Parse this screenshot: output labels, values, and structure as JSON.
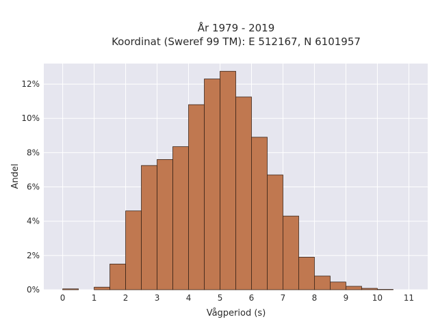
{
  "chart_data": {
    "type": "bar",
    "title_line1": "År 1979 - 2019",
    "title_line2": "Koordinat (Sweref 99 TM): E 512167, N 6101957",
    "xlabel": "Vågperiod (s)",
    "ylabel": "Andel",
    "bin_width": 0.5,
    "bins": [
      {
        "start": 0.0,
        "value": 0.05
      },
      {
        "start": 0.5,
        "value": 0.0
      },
      {
        "start": 1.0,
        "value": 0.15
      },
      {
        "start": 1.5,
        "value": 1.5
      },
      {
        "start": 2.0,
        "value": 4.6
      },
      {
        "start": 2.5,
        "value": 7.25
      },
      {
        "start": 3.0,
        "value": 7.6
      },
      {
        "start": 3.5,
        "value": 8.35
      },
      {
        "start": 4.0,
        "value": 10.8
      },
      {
        "start": 4.5,
        "value": 12.3
      },
      {
        "start": 5.0,
        "value": 12.75
      },
      {
        "start": 5.5,
        "value": 11.25
      },
      {
        "start": 6.0,
        "value": 8.9
      },
      {
        "start": 6.5,
        "value": 6.7
      },
      {
        "start": 7.0,
        "value": 4.3
      },
      {
        "start": 7.5,
        "value": 1.9
      },
      {
        "start": 8.0,
        "value": 0.8
      },
      {
        "start": 8.5,
        "value": 0.45
      },
      {
        "start": 9.0,
        "value": 0.2
      },
      {
        "start": 9.5,
        "value": 0.08
      },
      {
        "start": 10.0,
        "value": 0.02
      }
    ],
    "xticks": [
      "0",
      "1",
      "2",
      "3",
      "4",
      "5",
      "6",
      "7",
      "8",
      "9",
      "10",
      "11"
    ],
    "yticks": [
      "0%",
      "2%",
      "4%",
      "6%",
      "8%",
      "10%",
      "12%"
    ],
    "xlim": [
      -0.6,
      11.6
    ],
    "ylim": [
      0,
      13.2
    ],
    "grid": true,
    "colors": {
      "bar_fill": "#c07850",
      "bar_edge": "#3a2418",
      "plot_bg": "#e6e6ef",
      "grid": "#ffffff"
    }
  }
}
